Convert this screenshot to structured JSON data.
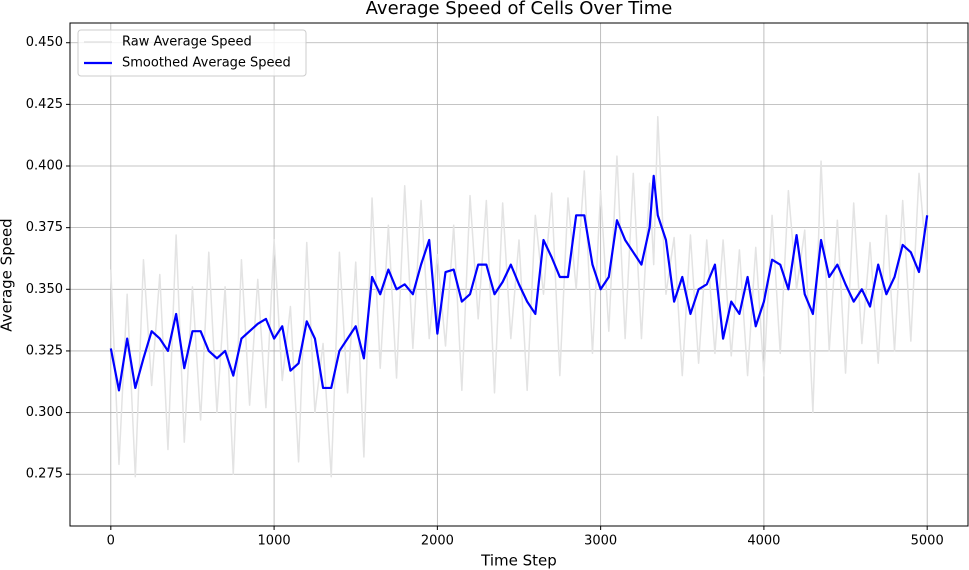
{
  "chart_data": {
    "type": "line",
    "title": "Average Speed of Cells Over Time",
    "x_label": "Time Step",
    "y_label": "Average Speed",
    "x": [
      0,
      50,
      100,
      150,
      200,
      250,
      300,
      350,
      400,
      450,
      500,
      550,
      600,
      650,
      700,
      750,
      800,
      850,
      900,
      950,
      1000,
      1050,
      1100,
      1150,
      1200,
      1250,
      1300,
      1350,
      1400,
      1450,
      1500,
      1550,
      1600,
      1650,
      1700,
      1750,
      1800,
      1850,
      1900,
      1950,
      2000,
      2050,
      2100,
      2150,
      2200,
      2250,
      2300,
      2350,
      2400,
      2450,
      2500,
      2550,
      2600,
      2650,
      2700,
      2750,
      2800,
      2850,
      2900,
      2950,
      3000,
      3050,
      3100,
      3150,
      3200,
      3250,
      3300,
      3325,
      3350,
      3400,
      3450,
      3500,
      3550,
      3600,
      3650,
      3700,
      3750,
      3800,
      3850,
      3900,
      3950,
      4000,
      4050,
      4100,
      4150,
      4200,
      4250,
      4300,
      4350,
      4400,
      4450,
      4500,
      4550,
      4600,
      4650,
      4700,
      4750,
      4800,
      4850,
      4900,
      4950,
      5000
    ],
    "series": [
      {
        "name": "Raw Average Speed",
        "color": "#e3e3e3",
        "width": 1.5,
        "values": [
          0.358,
          0.279,
          0.348,
          0.274,
          0.362,
          0.311,
          0.356,
          0.285,
          0.372,
          0.288,
          0.351,
          0.297,
          0.365,
          0.3,
          0.351,
          0.275,
          0.362,
          0.303,
          0.354,
          0.302,
          0.37,
          0.313,
          0.343,
          0.28,
          0.369,
          0.3,
          0.328,
          0.274,
          0.365,
          0.308,
          0.361,
          0.282,
          0.387,
          0.318,
          0.376,
          0.314,
          0.392,
          0.326,
          0.386,
          0.33,
          0.364,
          0.327,
          0.376,
          0.309,
          0.388,
          0.338,
          0.386,
          0.308,
          0.385,
          0.33,
          0.37,
          0.309,
          0.38,
          0.348,
          0.389,
          0.315,
          0.387,
          0.35,
          0.398,
          0.324,
          0.39,
          0.333,
          0.404,
          0.33,
          0.397,
          0.33,
          0.393,
          0.36,
          0.42,
          0.348,
          0.371,
          0.315,
          0.372,
          0.32,
          0.37,
          0.324,
          0.37,
          0.323,
          0.366,
          0.315,
          0.367,
          0.315,
          0.38,
          0.324,
          0.39,
          0.35,
          0.374,
          0.3,
          0.402,
          0.325,
          0.378,
          0.316,
          0.385,
          0.328,
          0.369,
          0.32,
          0.38,
          0.325,
          0.386,
          0.329,
          0.397,
          0.358
        ]
      },
      {
        "name": "Smoothed Average Speed",
        "color": "#0000ff",
        "width": 2.2,
        "values": [
          0.326,
          0.309,
          0.33,
          0.31,
          0.322,
          0.333,
          0.33,
          0.325,
          0.34,
          0.318,
          0.333,
          0.333,
          0.325,
          0.322,
          0.325,
          0.315,
          0.33,
          0.333,
          0.336,
          0.338,
          0.33,
          0.335,
          0.317,
          0.32,
          0.337,
          0.33,
          0.31,
          0.31,
          0.325,
          0.33,
          0.335,
          0.322,
          0.355,
          0.348,
          0.358,
          0.35,
          0.352,
          0.348,
          0.36,
          0.37,
          0.332,
          0.357,
          0.358,
          0.345,
          0.348,
          0.36,
          0.36,
          0.348,
          0.353,
          0.36,
          0.352,
          0.345,
          0.34,
          0.37,
          0.363,
          0.355,
          0.355,
          0.38,
          0.38,
          0.36,
          0.35,
          0.355,
          0.378,
          0.37,
          0.365,
          0.36,
          0.375,
          0.396,
          0.38,
          0.37,
          0.345,
          0.355,
          0.34,
          0.35,
          0.352,
          0.36,
          0.33,
          0.345,
          0.34,
          0.355,
          0.335,
          0.345,
          0.362,
          0.36,
          0.35,
          0.372,
          0.348,
          0.34,
          0.37,
          0.355,
          0.36,
          0.352,
          0.345,
          0.35,
          0.343,
          0.36,
          0.348,
          0.355,
          0.368,
          0.365,
          0.357,
          0.38
        ]
      }
    ],
    "xlim": [
      -250,
      5250
    ],
    "ylim": [
      0.254,
      0.458
    ],
    "xticks": [
      0,
      1000,
      2000,
      3000,
      4000,
      5000
    ],
    "yticks": [
      0.275,
      {
        "value": 0.3,
        "label": "0.300"
      },
      0.325,
      {
        "value": 0.35,
        "label": "0.350"
      },
      0.375,
      {
        "value": 0.4,
        "label": "0.400"
      },
      0.425,
      {
        "value": 0.45,
        "label": "0.450"
      }
    ],
    "grid": true,
    "legend": "upper-left"
  }
}
